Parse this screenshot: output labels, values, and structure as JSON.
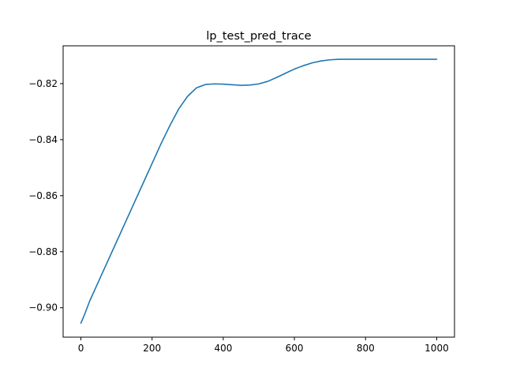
{
  "chart_data": {
    "type": "line",
    "title": "lp_test_pred_trace",
    "xlabel": "",
    "ylabel": "",
    "xlim": [
      -50,
      1050
    ],
    "ylim": [
      -0.9105,
      -0.8065
    ],
    "x_ticks": [
      0,
      200,
      400,
      600,
      800,
      1000
    ],
    "x_tick_labels": [
      "0",
      "200",
      "400",
      "600",
      "800",
      "1000"
    ],
    "y_ticks": [
      -0.9,
      -0.88,
      -0.86,
      -0.84,
      -0.82
    ],
    "y_tick_labels": [
      "−0.90",
      "−0.88",
      "−0.86",
      "−0.84",
      "−0.82"
    ],
    "grid": false,
    "legend": "none",
    "series": [
      {
        "color": "#1f77b4",
        "x": [
          0,
          10,
          25,
          50,
          75,
          100,
          125,
          150,
          175,
          200,
          225,
          250,
          275,
          300,
          325,
          350,
          375,
          400,
          425,
          450,
          475,
          500,
          525,
          550,
          575,
          600,
          625,
          650,
          675,
          700,
          725,
          750,
          800,
          850,
          900,
          950,
          1000
        ],
        "y": [
          -0.9055,
          -0.9025,
          -0.8975,
          -0.8905,
          -0.8835,
          -0.8765,
          -0.8695,
          -0.8625,
          -0.8555,
          -0.8485,
          -0.8415,
          -0.835,
          -0.829,
          -0.8245,
          -0.8215,
          -0.8203,
          -0.8201,
          -0.8202,
          -0.8204,
          -0.8206,
          -0.8205,
          -0.8201,
          -0.8192,
          -0.8178,
          -0.8163,
          -0.8148,
          -0.8136,
          -0.8126,
          -0.8119,
          -0.8115,
          -0.8113,
          -0.8113,
          -0.8113,
          -0.8113,
          -0.8113,
          -0.8113,
          -0.8113
        ]
      }
    ]
  }
}
